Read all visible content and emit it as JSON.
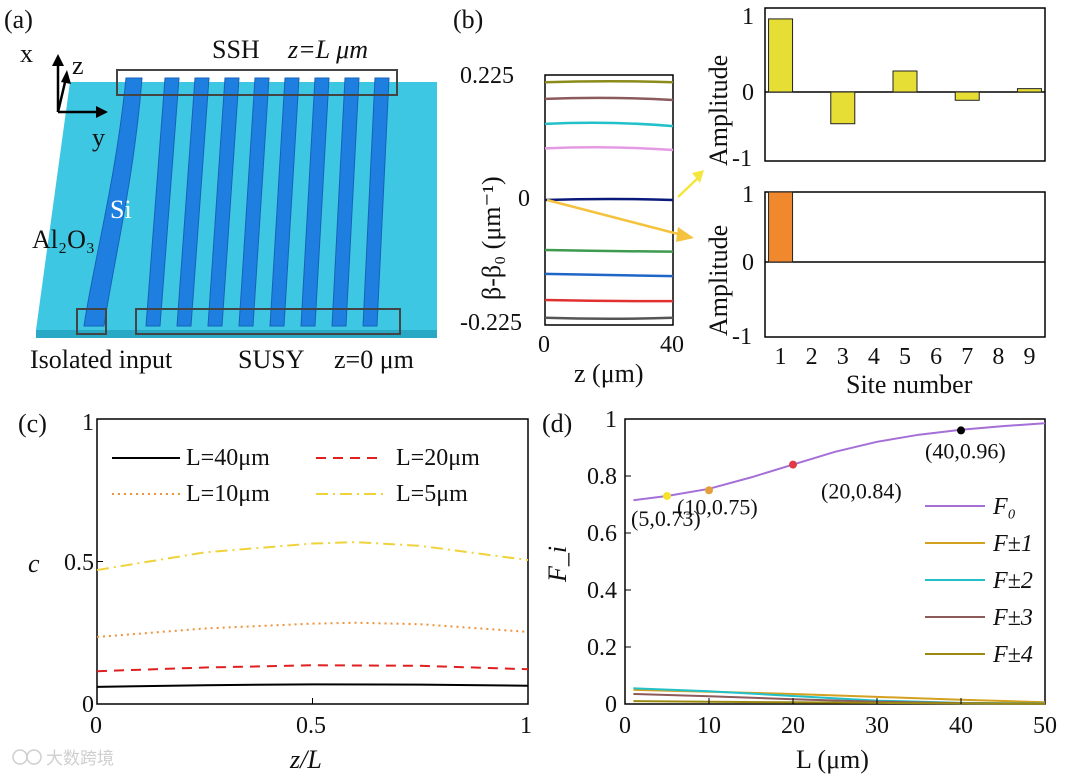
{
  "panel_labels": {
    "a": "(a)",
    "b": "(b)",
    "c": "(c)",
    "d": "(d)"
  },
  "watermark": "大数跨境",
  "schematic": {
    "axes": {
      "x": "x",
      "z": "z",
      "y": "y"
    },
    "labels": {
      "ssh": "SSH",
      "ssh_eq": "z=L μm",
      "si": "Si",
      "substrate": "Al₂O₃",
      "isolated": "Isolated input",
      "susy": "SUSY",
      "susy_eq": "z=0 μm"
    },
    "colors": {
      "substrate": "#3ec7e2",
      "waveguide": "#1f7fe0",
      "box": "#444444"
    },
    "waveguide_count": 9
  },
  "chart_data": [
    {
      "id": "b-left",
      "type": "line",
      "xlabel": "z (μm)",
      "ylabel": "β-β₀ (μm⁻¹)",
      "xlim": [
        0,
        40
      ],
      "ylim": [
        -0.225,
        0.225
      ],
      "xticks": [
        "0",
        "40"
      ],
      "yticks": [
        "0.225",
        "0",
        "-0.225"
      ],
      "series": [
        {
          "color": "#8b8b1a",
          "values": [
            0.212,
            0.212
          ]
        },
        {
          "color": "#8c5a5a",
          "values": [
            0.182,
            0.18
          ]
        },
        {
          "color": "#22c1c9",
          "values": [
            0.137,
            0.133
          ]
        },
        {
          "color": "#e39be3",
          "values": [
            0.093,
            0.09
          ]
        },
        {
          "color": "#0a1a7a",
          "values": [
            0.0,
            0.0
          ]
        },
        {
          "color": "#3d9a4f",
          "values": [
            -0.09,
            -0.093
          ]
        },
        {
          "color": "#1f66c8",
          "values": [
            -0.133,
            -0.137
          ]
        },
        {
          "color": "#e03030",
          "values": [
            -0.18,
            -0.182
          ]
        },
        {
          "color": "#555555",
          "values": [
            -0.212,
            -0.212
          ]
        }
      ],
      "arrows": [
        {
          "color": "#f5c23d",
          "from": [
            0,
            0
          ],
          "to_panel": "b-bottom"
        },
        {
          "color": "#f5e63d",
          "target": "b-top"
        }
      ]
    },
    {
      "id": "b-top",
      "type": "bar",
      "ylabel": "Amplitude",
      "ylim": [
        -1,
        1
      ],
      "yticks": [
        "1",
        "0",
        "-1"
      ],
      "color": "#e6de34",
      "categories": [
        1,
        2,
        3,
        4,
        5,
        6,
        7,
        8,
        9
      ],
      "values": [
        0.87,
        0,
        -0.46,
        0,
        0.25,
        0,
        -0.12,
        0,
        0.04
      ]
    },
    {
      "id": "b-bottom",
      "type": "bar",
      "ylabel": "Amplitude",
      "xlabel": "Site number",
      "ylim": [
        -1,
        1
      ],
      "yticks": [
        "1",
        "0",
        "-1"
      ],
      "xticks": [
        "1",
        "2",
        "3",
        "4",
        "5",
        "6",
        "7",
        "8",
        "9"
      ],
      "color": "#f0882e",
      "categories": [
        1,
        2,
        3,
        4,
        5,
        6,
        7,
        8,
        9
      ],
      "values": [
        1,
        0,
        0,
        0,
        0,
        0,
        0,
        0,
        0
      ]
    },
    {
      "id": "c",
      "type": "line",
      "xlabel": "z/L",
      "ylabel": "c",
      "xlim": [
        0,
        1
      ],
      "ylim": [
        0,
        1
      ],
      "xticks": [
        "0",
        "0.5",
        "1"
      ],
      "yticks": [
        "1",
        "0.5",
        "0"
      ],
      "legend": "top",
      "series": [
        {
          "name": "L=40μm",
          "color": "#000000",
          "dash": "",
          "x": [
            0,
            0.25,
            0.5,
            0.75,
            1
          ],
          "values": [
            0.06,
            0.066,
            0.069,
            0.068,
            0.064
          ]
        },
        {
          "name": "L=20μm",
          "color": "#e02020",
          "dash": "10,7",
          "x": [
            0,
            0.25,
            0.5,
            0.75,
            1
          ],
          "values": [
            0.115,
            0.128,
            0.136,
            0.134,
            0.122
          ]
        },
        {
          "name": "L=10μm",
          "color": "#f0923a",
          "dash": "2,4",
          "x": [
            0,
            0.25,
            0.5,
            0.6,
            0.75,
            1
          ],
          "values": [
            0.235,
            0.265,
            0.282,
            0.285,
            0.28,
            0.253
          ]
        },
        {
          "name": "L=5μm",
          "color": "#f0d23a",
          "dash": "12,5,2,5",
          "x": [
            0,
            0.25,
            0.5,
            0.6,
            0.75,
            1
          ],
          "values": [
            0.47,
            0.532,
            0.563,
            0.568,
            0.555,
            0.505
          ]
        }
      ]
    },
    {
      "id": "d",
      "type": "line",
      "xlabel": "L (μm)",
      "ylabel": "F_i",
      "xlim": [
        0,
        50
      ],
      "ylim": [
        0,
        1
      ],
      "xticks": [
        "0",
        "10",
        "20",
        "30",
        "40",
        "50"
      ],
      "yticks": [
        "1",
        "0.8",
        "0.6",
        "0.4",
        "0.2",
        "0"
      ],
      "legend": "right",
      "series": [
        {
          "name": "F₀",
          "color": "#a56fd8",
          "x": [
            1,
            5,
            10,
            15,
            20,
            25,
            30,
            35,
            40,
            45,
            50
          ],
          "values": [
            0.715,
            0.73,
            0.755,
            0.795,
            0.84,
            0.885,
            0.92,
            0.945,
            0.962,
            0.975,
            0.985
          ]
        },
        {
          "name": "F±1",
          "color": "#d4a020",
          "x": [
            1,
            10,
            20,
            30,
            40,
            50
          ],
          "values": [
            0.05,
            0.043,
            0.035,
            0.025,
            0.015,
            0.006
          ]
        },
        {
          "name": "F±2",
          "color": "#22c1c9",
          "x": [
            1,
            10,
            20,
            30,
            40,
            50
          ],
          "values": [
            0.055,
            0.045,
            0.028,
            0.012,
            0.004,
            0.002
          ]
        },
        {
          "name": "F±3",
          "color": "#8c5a5a",
          "x": [
            1,
            10,
            20,
            30,
            40,
            50
          ],
          "values": [
            0.035,
            0.027,
            0.017,
            0.008,
            0.003,
            0.001
          ]
        },
        {
          "name": "F±4",
          "color": "#9c8a10",
          "x": [
            1,
            10,
            20,
            30,
            40,
            50
          ],
          "values": [
            0.01,
            0.008,
            0.006,
            0.004,
            0.002,
            0.001
          ]
        }
      ],
      "markers": [
        {
          "x": 5,
          "y": 0.73,
          "color": "#f5e22a",
          "label": "(5,0.73)"
        },
        {
          "x": 10,
          "y": 0.75,
          "color": "#e3a03a",
          "label": "(10,0.75)"
        },
        {
          "x": 20,
          "y": 0.84,
          "color": "#e03a4a",
          "label": "(20,0.84)"
        },
        {
          "x": 40,
          "y": 0.96,
          "color": "#000000",
          "label": "(40,0.96)"
        }
      ]
    }
  ]
}
